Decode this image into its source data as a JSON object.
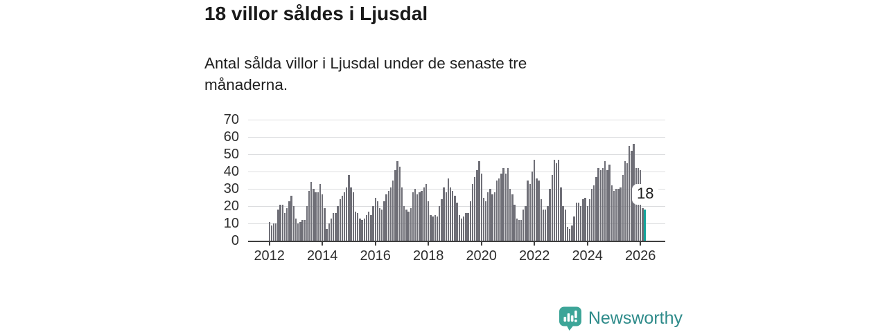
{
  "header": {
    "title": "18 villor såldes i Ljusdal",
    "subtitle": "Antal sålda villor i Ljusdal under de senaste tre månaderna."
  },
  "chart_data": {
    "type": "bar",
    "title": "18 villor såldes i Ljusdal",
    "x_start": "2012-01",
    "x_end": "2026-03",
    "x_tick_labels": [
      "2012",
      "2014",
      "2016",
      "2018",
      "2020",
      "2022",
      "2024",
      "2026"
    ],
    "x_tick_month_index": [
      0,
      24,
      48,
      72,
      96,
      120,
      144,
      168
    ],
    "y_ticks": [
      0,
      10,
      20,
      30,
      40,
      50,
      60,
      70
    ],
    "ylim": [
      0,
      70
    ],
    "grid": true,
    "bar_color": "#6f6f77",
    "values": [
      11,
      9,
      10,
      10,
      18,
      21,
      21,
      16,
      19,
      23,
      26,
      20,
      13,
      10,
      11,
      12,
      12,
      20,
      29,
      34,
      30,
      28,
      28,
      33,
      27,
      19,
      7,
      10,
      13,
      16,
      16,
      20,
      24,
      26,
      28,
      31,
      38,
      31,
      28,
      17,
      16,
      13,
      12,
      13,
      15,
      17,
      15,
      20,
      25,
      23,
      19,
      18,
      23,
      27,
      29,
      31,
      35,
      41,
      46,
      43,
      31,
      20,
      18,
      17,
      19,
      28,
      30,
      27,
      28,
      29,
      31,
      33,
      23,
      15,
      14,
      15,
      14,
      20,
      24,
      31,
      28,
      36,
      31,
      29,
      26,
      22,
      15,
      13,
      14,
      16,
      16,
      23,
      33,
      37,
      41,
      46,
      39,
      25,
      23,
      28,
      30,
      27,
      28,
      35,
      36,
      39,
      42,
      39,
      42,
      30,
      27,
      21,
      13,
      12,
      12,
      18,
      20,
      35,
      33,
      40,
      47,
      36,
      35,
      24,
      18,
      18,
      20,
      30,
      38,
      47,
      45,
      47,
      31,
      20,
      18,
      8,
      7,
      9,
      14,
      22,
      22,
      20,
      24,
      25,
      20,
      24,
      30,
      32,
      37,
      42,
      41,
      42,
      46,
      41,
      44,
      32,
      29,
      30,
      30,
      31,
      38,
      46,
      45,
      55,
      52,
      56,
      42,
      42,
      41,
      19,
      18
    ],
    "highlight": {
      "index": 170,
      "value": 18,
      "label": "18",
      "color": "#12a49b"
    }
  },
  "branding": {
    "name": "Newsworthy",
    "icon": "newsworthy-pin-barchart-icon",
    "text_color": "#2e8b8a",
    "icon_color": "#3da598"
  }
}
